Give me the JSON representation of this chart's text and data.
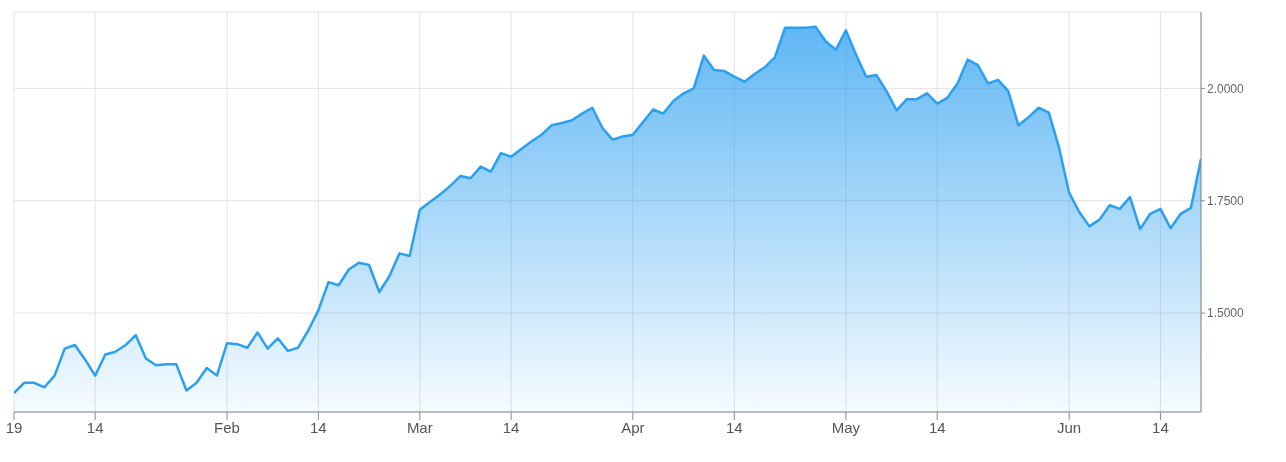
{
  "chart_data": {
    "type": "area",
    "categories": [
      "19",
      null,
      null,
      null,
      null,
      null,
      null,
      null,
      "14",
      null,
      null,
      null,
      null,
      null,
      null,
      null,
      null,
      null,
      null,
      null,
      null,
      "Feb",
      null,
      null,
      null,
      null,
      null,
      null,
      null,
      null,
      "14",
      null,
      null,
      null,
      null,
      null,
      null,
      null,
      null,
      null,
      "Mar",
      null,
      null,
      null,
      null,
      null,
      null,
      null,
      null,
      "14",
      null,
      null,
      null,
      null,
      null,
      null,
      null,
      null,
      null,
      null,
      null,
      "Apr",
      null,
      null,
      null,
      null,
      null,
      null,
      null,
      null,
      null,
      "14",
      null,
      null,
      null,
      null,
      null,
      null,
      null,
      null,
      null,
      null,
      "May",
      null,
      null,
      null,
      null,
      null,
      null,
      null,
      null,
      "14",
      null,
      null,
      null,
      null,
      null,
      null,
      null,
      null,
      null,
      null,
      null,
      null,
      "Jun",
      null,
      null,
      null,
      null,
      null,
      null,
      null,
      null,
      "14",
      null,
      null,
      null,
      null
    ],
    "series": [
      {
        "color": "#2b9ff0",
        "values": [
          1.322,
          1.345,
          1.345,
          1.335,
          1.361,
          1.421,
          1.429,
          1.397,
          1.361,
          1.408,
          1.414,
          1.429,
          1.451,
          1.399,
          1.384,
          1.386,
          1.386,
          1.328,
          1.345,
          1.378,
          1.361,
          1.433,
          1.431,
          1.423,
          1.457,
          1.421,
          1.444,
          1.416,
          1.423,
          1.461,
          1.506,
          1.569,
          1.562,
          1.597,
          1.612,
          1.607,
          1.547,
          1.582,
          1.633,
          1.627,
          1.73,
          1.747,
          1.764,
          1.783,
          1.805,
          1.8,
          1.826,
          1.815,
          1.856,
          1.848,
          1.865,
          1.882,
          1.897,
          1.918,
          1.923,
          1.929,
          1.944,
          1.957,
          1.912,
          1.886,
          1.893,
          1.897,
          1.925,
          1.953,
          1.944,
          1.972,
          1.989,
          2.0,
          2.073,
          2.041,
          2.039,
          2.026,
          2.015,
          2.032,
          2.047,
          2.069,
          2.135,
          2.135,
          2.135,
          2.137,
          2.105,
          2.086,
          2.129,
          2.075,
          2.026,
          2.03,
          1.994,
          1.951,
          1.976,
          1.976,
          1.989,
          1.966,
          1.979,
          2.011,
          2.064,
          2.052,
          2.011,
          2.019,
          1.994,
          1.918,
          1.936,
          1.957,
          1.946,
          1.869,
          1.768,
          1.725,
          1.693,
          1.708,
          1.74,
          1.732,
          1.758,
          1.687,
          1.721,
          1.732,
          1.689,
          1.721,
          1.734,
          1.843
        ]
      }
    ],
    "ylim": [
      1.28,
      2.17
    ],
    "yticks": [
      {
        "value": 1.5,
        "label": "1.5000"
      },
      {
        "value": 1.75,
        "label": "1.7500"
      },
      {
        "value": 2.0,
        "label": "2.0000"
      }
    ],
    "grid": true,
    "legend": false,
    "marker": "none",
    "line_style": "solid"
  }
}
